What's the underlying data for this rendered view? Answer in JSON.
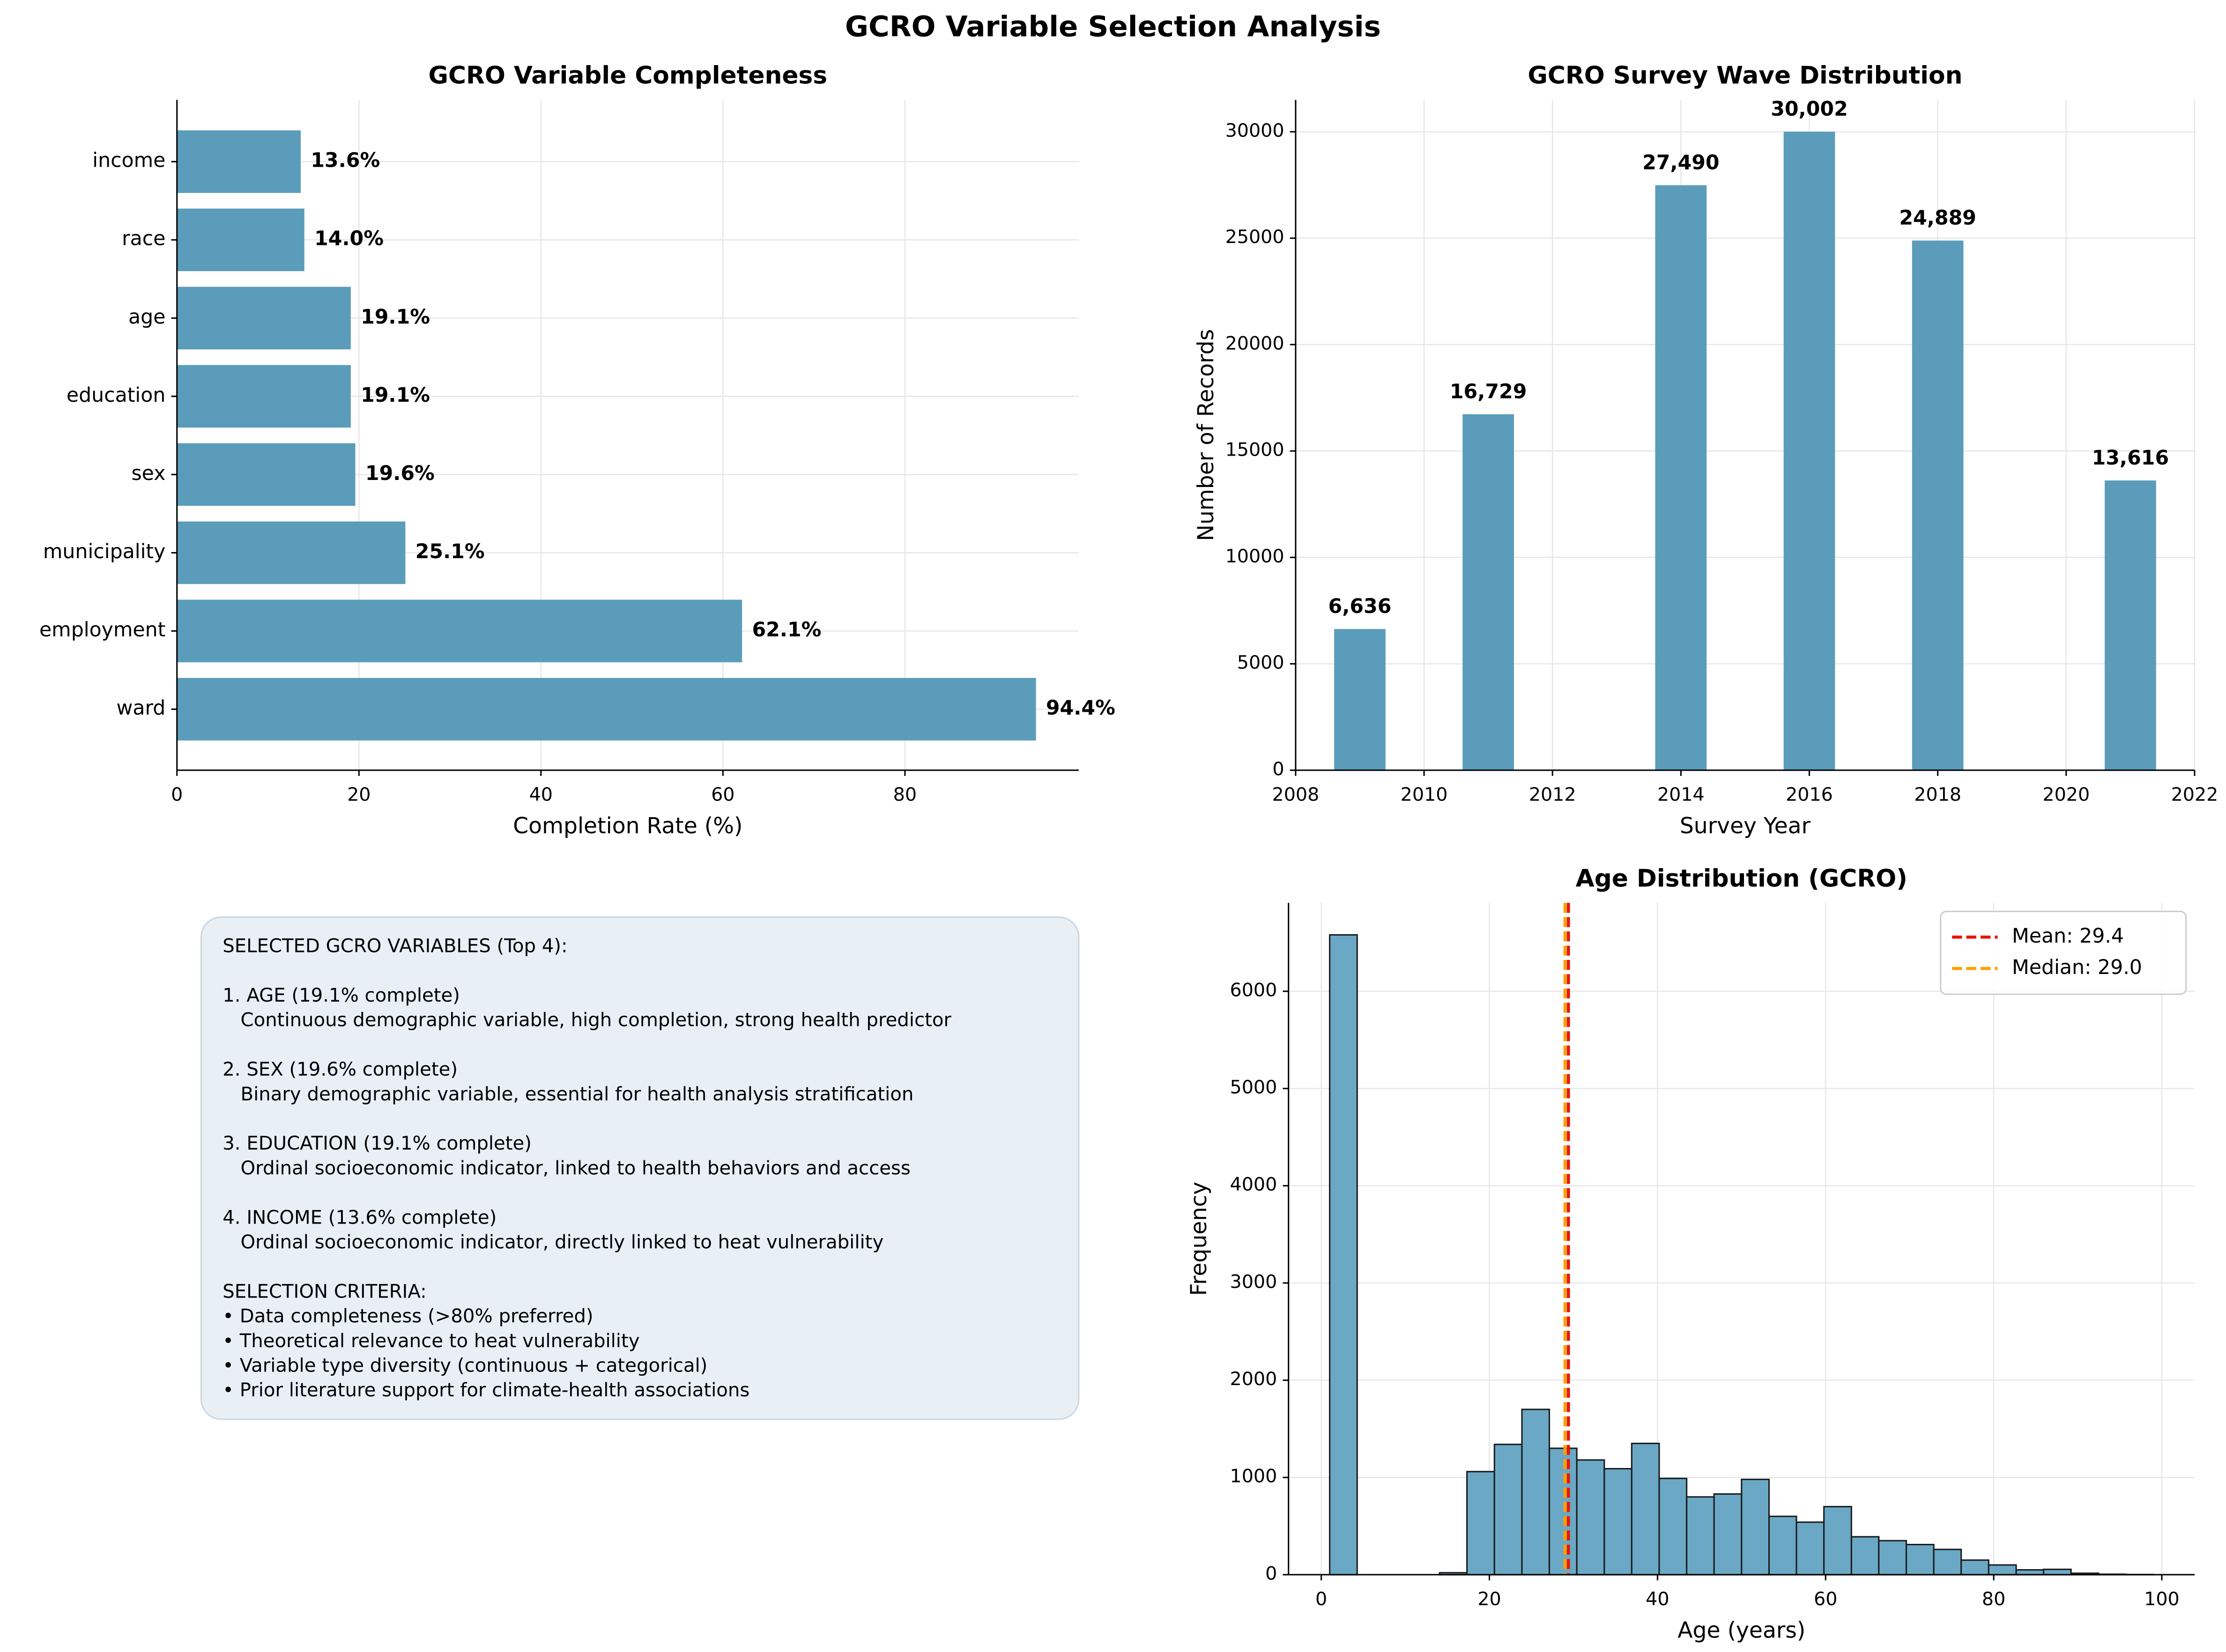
{
  "title": "GCRO Variable Selection Analysis",
  "chart_data": [
    {
      "type": "barh",
      "title": "GCRO Variable Completeness",
      "xlabel": "Completion Rate (%)",
      "categories": [
        "income",
        "race",
        "age",
        "education",
        "sex",
        "municipality",
        "employment",
        "ward"
      ],
      "values": [
        13.6,
        14.0,
        19.1,
        19.1,
        19.6,
        25.1,
        62.1,
        94.4
      ],
      "value_labels": [
        "13.6%",
        "14.0%",
        "19.1%",
        "19.1%",
        "19.6%",
        "25.1%",
        "62.1%",
        "94.4%"
      ],
      "color": "#5b9cba",
      "xlim": [
        0,
        99.1
      ],
      "xticks": [
        0,
        20,
        40,
        60,
        80
      ],
      "grid": true
    },
    {
      "type": "bar",
      "title": "GCRO Survey Wave Distribution",
      "xlabel": "Survey Year",
      "ylabel": "Number of Records",
      "x": [
        2009,
        2011,
        2014,
        2016,
        2018,
        2021
      ],
      "values": [
        6636,
        16729,
        27490,
        30002,
        24889,
        13616
      ],
      "value_labels": [
        "6,636",
        "16,729",
        "27,490",
        "30,002",
        "24,889",
        "13,616"
      ],
      "color": "#5b9cba",
      "xlim": [
        2008,
        2022
      ],
      "xticks": [
        2008,
        2010,
        2012,
        2014,
        2016,
        2018,
        2020,
        2022
      ],
      "ylim": [
        0,
        31500
      ],
      "yticks": [
        0,
        5000,
        10000,
        15000,
        20000,
        25000,
        30000
      ],
      "grid": true
    },
    {
      "type": "histogram",
      "title": "Age Distribution (GCRO)",
      "xlabel": "Age (years)",
      "ylabel": "Frequency",
      "bins": [
        1,
        4.27,
        7.53,
        10.8,
        14.07,
        17.33,
        20.6,
        23.87,
        27.13,
        30.4,
        33.67,
        36.93,
        40.2,
        43.47,
        46.73,
        50,
        53.27,
        56.53,
        59.8,
        63.07,
        66.33,
        69.6,
        72.87,
        76.13,
        79.4,
        82.67,
        85.93,
        89.2,
        92.47,
        95.73,
        99
      ],
      "counts": [
        6580,
        0,
        0,
        0,
        20,
        1060,
        1340,
        1700,
        1300,
        1180,
        1090,
        1350,
        990,
        800,
        830,
        980,
        600,
        540,
        700,
        390,
        350,
        310,
        260,
        150,
        100,
        50,
        55,
        15,
        5,
        2
      ],
      "color": "#6aa8c5",
      "lines": [
        {
          "name": "Mean: 29.4",
          "value": 29.4,
          "color": "#e8160c"
        },
        {
          "name": "Median: 29.0",
          "value": 29.0,
          "color": "#ffa000"
        }
      ],
      "legend": "upper right",
      "xlim": [
        -3.9,
        103.9
      ],
      "xticks": [
        0,
        20,
        40,
        60,
        80,
        100
      ],
      "ylim": [
        0,
        6909
      ],
      "yticks": [
        0,
        1000,
        2000,
        3000,
        4000,
        5000,
        6000
      ],
      "grid": true
    }
  ],
  "text_box": {
    "paragraphs": [
      [
        "SELECTED GCRO VARIABLES (Top 4):"
      ],
      [
        "1. AGE (19.1% complete)",
        "   Continuous demographic variable, high completion, strong health predictor"
      ],
      [
        "2. SEX (19.6% complete)",
        "   Binary demographic variable, essential for health analysis stratification"
      ],
      [
        "3. EDUCATION (19.1% complete)",
        "   Ordinal socioeconomic indicator, linked to health behaviors and access"
      ],
      [
        "4. INCOME (13.6% complete)",
        "   Ordinal socioeconomic indicator, directly linked to heat vulnerability"
      ],
      [
        "SELECTION CRITERIA:",
        "• Data completeness (>80% preferred)",
        "• Theoretical relevance to heat vulnerability",
        "• Variable type diversity (continuous + categorical)",
        "• Prior literature support for climate-health associations"
      ]
    ]
  }
}
